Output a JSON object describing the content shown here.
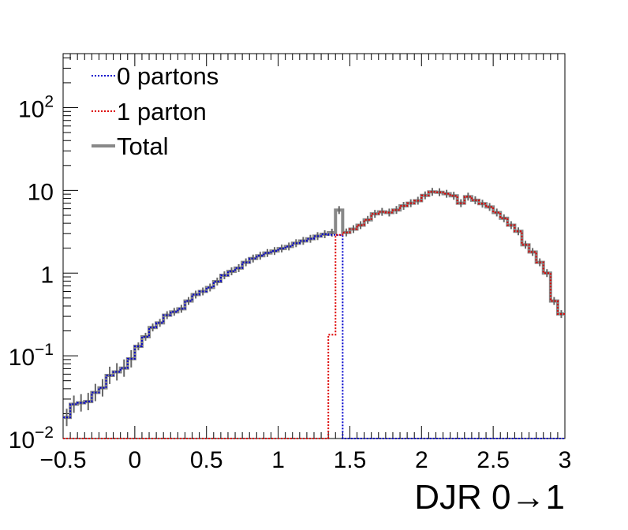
{
  "chart_data": {
    "type": "line",
    "title": "",
    "xlabel": "DJR 0→1",
    "ylabel": "",
    "xlim": [
      -0.5,
      3.0
    ],
    "ylim": [
      0.01,
      450
    ],
    "yscale": "log",
    "legend_position": "top-left",
    "x_ticks": [
      {
        "value": -0.5,
        "label": "−0.5"
      },
      {
        "value": 0,
        "label": "0"
      },
      {
        "value": 0.5,
        "label": "0.5"
      },
      {
        "value": 1,
        "label": "1"
      },
      {
        "value": 1.5,
        "label": "1.5"
      },
      {
        "value": 2,
        "label": "2"
      },
      {
        "value": 2.5,
        "label": "2.5"
      },
      {
        "value": 3,
        "label": "3"
      }
    ],
    "y_ticks": [
      {
        "value": 0.01,
        "base": "10",
        "exp": "−2"
      },
      {
        "value": 0.1,
        "base": "10",
        "exp": "−1"
      },
      {
        "value": 1,
        "base": "1",
        "exp": ""
      },
      {
        "value": 10,
        "base": "10",
        "exp": ""
      },
      {
        "value": 100,
        "base": "10",
        "exp": "2"
      }
    ],
    "bin_edges_start": -0.5,
    "bin_width": 0.05,
    "series": [
      {
        "name": "0 partons",
        "color": "#0000cc",
        "style": "dotted",
        "values": [
          0.018,
          0.026,
          0.027,
          0.028,
          0.036,
          0.041,
          0.058,
          0.064,
          0.071,
          0.092,
          0.13,
          0.17,
          0.22,
          0.25,
          0.31,
          0.34,
          0.37,
          0.46,
          0.55,
          0.6,
          0.67,
          0.79,
          0.94,
          1.05,
          1.15,
          1.35,
          1.5,
          1.62,
          1.75,
          1.85,
          1.98,
          2.1,
          2.3,
          2.45,
          2.6,
          2.8,
          2.95,
          2.9,
          2.88,
          0,
          0,
          0,
          0,
          0,
          0,
          0,
          0,
          0,
          0,
          0,
          0,
          0,
          0,
          0,
          0,
          0,
          0,
          0,
          0,
          0,
          0,
          0,
          0,
          0,
          0,
          0,
          0,
          0,
          0,
          0
        ]
      },
      {
        "name": "1 parton",
        "color": "#dd0000",
        "style": "dotted",
        "values": [
          0,
          0,
          0,
          0,
          0,
          0,
          0,
          0,
          0,
          0,
          0,
          0,
          0,
          0,
          0,
          0,
          0,
          0,
          0,
          0,
          0,
          0,
          0,
          0,
          0,
          0,
          0,
          0,
          0,
          0,
          0,
          0,
          0,
          0,
          0,
          0,
          0,
          0.18,
          2.9,
          3.1,
          3.4,
          3.8,
          4.4,
          5.2,
          5.5,
          5.4,
          5.8,
          6.5,
          7.0,
          7.5,
          8.7,
          9.6,
          9.5,
          9.1,
          8.6,
          7.0,
          8.4,
          7.6,
          6.9,
          6.3,
          5.4,
          4.6,
          3.8,
          3.2,
          2.2,
          1.8,
          1.35,
          1.0,
          0.46,
          0.32
        ]
      },
      {
        "name": "Total",
        "color": "#888888",
        "style": "solid",
        "values": [
          0.018,
          0.026,
          0.027,
          0.028,
          0.036,
          0.041,
          0.058,
          0.064,
          0.071,
          0.092,
          0.13,
          0.17,
          0.22,
          0.25,
          0.31,
          0.34,
          0.37,
          0.46,
          0.55,
          0.6,
          0.67,
          0.79,
          0.94,
          1.05,
          1.15,
          1.35,
          1.5,
          1.62,
          1.75,
          1.85,
          1.98,
          2.1,
          2.3,
          2.45,
          2.6,
          2.8,
          2.95,
          3.08,
          5.78,
          3.1,
          3.4,
          3.8,
          4.4,
          5.2,
          5.5,
          5.4,
          5.8,
          6.5,
          7.0,
          7.5,
          8.7,
          9.6,
          9.5,
          9.1,
          8.6,
          7.0,
          8.4,
          7.6,
          6.9,
          6.3,
          5.4,
          4.6,
          3.8,
          3.2,
          2.2,
          1.8,
          1.35,
          1.0,
          0.46,
          0.32
        ]
      }
    ]
  }
}
